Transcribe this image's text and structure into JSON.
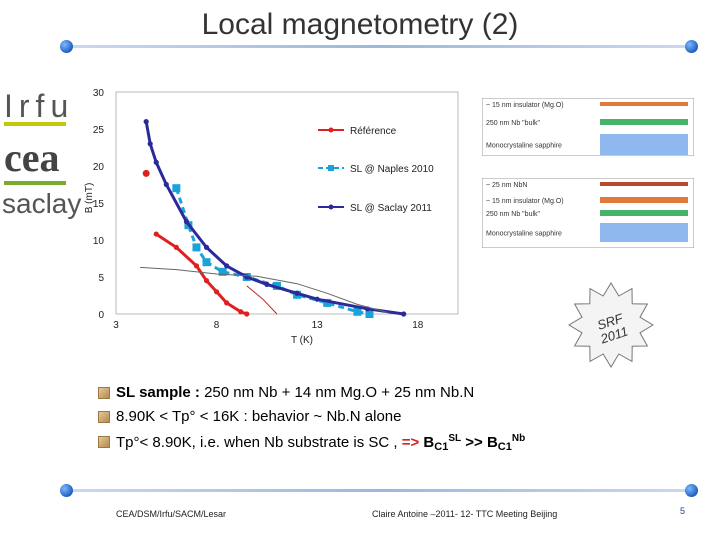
{
  "slide": {
    "title": "Local magnetometry (2)",
    "logos": {
      "irfu": "Irfu",
      "cea": "cea",
      "saclay": "saclay"
    },
    "bullets": [
      {
        "bold": "SL sample :",
        "rest": " 250 nm  Nb + 14 nm Mg.O + 25 nm Nb.N"
      },
      {
        "text": " 8.90K < Tp° < 16K : behavior ~ Nb.N alone"
      },
      {
        "text": "Tp°< 8.90K, i.e. when Nb substrate is SC , ",
        "red": "=>",
        "b1": " B",
        "s1": "C1",
        "sup1": "SL",
        "mid": " >> B",
        "s2": "C1",
        "sup2": "Nb"
      }
    ],
    "footer": {
      "left": "CEA/DSM/Irfu/SACM/Lesar",
      "center": "Claire Antoine –2011- 12- TTC Meeting Beijing",
      "page": "5"
    },
    "stamp": {
      "line1": "SRF",
      "line2": "2011"
    },
    "diagram_top": {
      "layers": [
        {
          "label": "~ 15 nm insulator (Mg.O)",
          "color": "#e07a3a"
        },
        {
          "label": "250 nm Nb \"bulk\"",
          "color": "#45b36b"
        },
        {
          "label": "Monocrystaline sapphire",
          "color": "#8fb8ee"
        }
      ]
    },
    "diagram_bottom": {
      "layers": [
        {
          "label": "~ 25 nm NbN",
          "color": "#b84a30"
        },
        {
          "label": "~ 15 nm insulator (Mg.O)",
          "color": "#e07a3a"
        },
        {
          "label": "250 nm Nb \"bulk\"",
          "color": "#45b36b"
        },
        {
          "label": "Monocrystaline sapphire",
          "color": "#8fb8ee"
        }
      ]
    }
  },
  "chart_data": {
    "type": "line",
    "xlabel": "T (K)",
    "ylabel": "B (mT)",
    "xlim": [
      3,
      20
    ],
    "ylim": [
      0,
      30
    ],
    "x_ticks": [
      3,
      8,
      13,
      18
    ],
    "y_ticks": [
      0,
      5,
      10,
      15,
      20,
      25,
      30
    ],
    "series": [
      {
        "name": "Référence",
        "color": "#e02020",
        "dash": "solid",
        "points": [
          [
            5.0,
            10.8
          ],
          [
            6.0,
            9.0
          ],
          [
            7.0,
            6.5
          ],
          [
            7.5,
            4.5
          ],
          [
            8.0,
            3.0
          ],
          [
            8.5,
            1.5
          ],
          [
            9.2,
            0.3
          ],
          [
            9.5,
            0.0
          ]
        ],
        "outlier": [
          4.5,
          19.0
        ]
      },
      {
        "name": "SL @ Naples 2010",
        "color": "#1aa3d9",
        "dash": "dashed",
        "points": [
          [
            6.0,
            17.0
          ],
          [
            6.6,
            12.0
          ],
          [
            7.0,
            9.0
          ],
          [
            7.5,
            7.0
          ],
          [
            8.3,
            5.7
          ],
          [
            9.5,
            5.0
          ],
          [
            11.0,
            3.8
          ],
          [
            12.0,
            2.6
          ],
          [
            13.5,
            1.5
          ],
          [
            15.0,
            0.3
          ],
          [
            15.6,
            0.0
          ]
        ]
      },
      {
        "name": "SL @ Saclay 2011",
        "color": "#2a2a9a",
        "dash": "solid",
        "points": [
          [
            4.5,
            26.0
          ],
          [
            4.7,
            23.0
          ],
          [
            5.0,
            20.5
          ],
          [
            5.5,
            17.5
          ],
          [
            6.5,
            12.5
          ],
          [
            7.5,
            9.0
          ],
          [
            8.5,
            6.5
          ],
          [
            9.5,
            5.0
          ],
          [
            10.5,
            4.0
          ],
          [
            12.0,
            2.8
          ],
          [
            13.0,
            2.0
          ],
          [
            15.5,
            0.7
          ],
          [
            17.3,
            0.0
          ]
        ]
      },
      {
        "name": "",
        "color": "#666666",
        "dash": "thin",
        "points": [
          [
            4.2,
            6.3
          ],
          [
            6.0,
            6.0
          ],
          [
            8.0,
            5.4
          ],
          [
            10.0,
            5.1
          ],
          [
            12.0,
            4.1
          ],
          [
            13.5,
            2.8
          ],
          [
            15.0,
            1.3
          ],
          [
            16.5,
            0.2
          ]
        ]
      },
      {
        "name": "",
        "color": "#cc2222",
        "dash": "thin",
        "points": [
          [
            9.5,
            3.8
          ],
          [
            10.3,
            2.0
          ],
          [
            11.0,
            0.0
          ]
        ]
      }
    ],
    "legend": "top-right"
  }
}
